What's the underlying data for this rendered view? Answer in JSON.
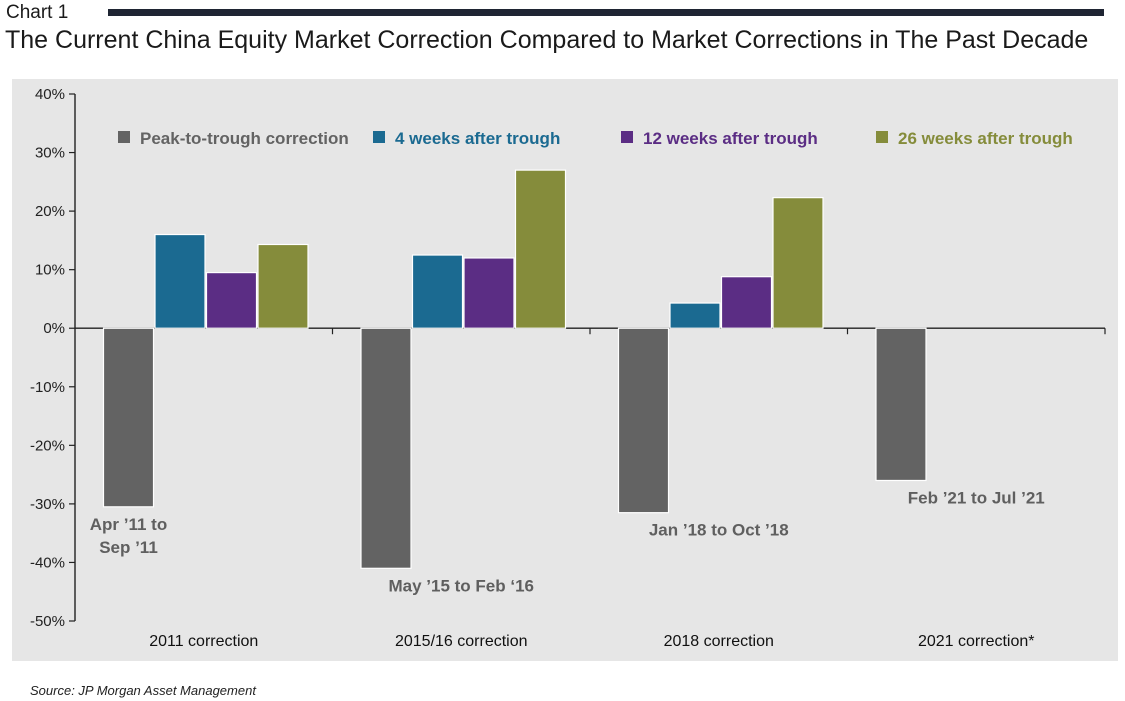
{
  "header": {
    "label": "Chart 1",
    "title": "The Current China Equity Market Correction Compared to Market Corrections in The Past Decade"
  },
  "footer": {
    "source": "Source: JP Morgan Asset Management"
  },
  "chart_data": {
    "type": "bar",
    "categories": [
      "2011 correction",
      "2015/16 correction",
      "2018 correction",
      "2021 correction*"
    ],
    "series": [
      {
        "name": "Peak-to-trough correction",
        "color": "#636363",
        "values": [
          -30.5,
          -41.0,
          -31.5,
          -26.0
        ]
      },
      {
        "name": "4 weeks after trough",
        "color": "#1b6a91",
        "values": [
          16.0,
          12.5,
          4.3,
          null
        ]
      },
      {
        "name": "12 weeks after trough",
        "color": "#5b2d84",
        "values": [
          9.5,
          12.0,
          8.8,
          null
        ]
      },
      {
        "name": "26 weeks after trough",
        "color": "#858c3b",
        "values": [
          14.3,
          27.0,
          22.3,
          null
        ]
      }
    ],
    "annotations": [
      {
        "category": "2011 correction",
        "lines": [
          "Apr ’11 to",
          "Sep ’11"
        ]
      },
      {
        "category": "2015/16 correction",
        "lines": [
          "May ’15 to Feb ‘16"
        ]
      },
      {
        "category": "2018 correction",
        "lines": [
          "Jan ’18 to Oct ’18"
        ]
      },
      {
        "category": "2021 correction*",
        "lines": [
          "Feb ’21 to Jul ’21"
        ]
      }
    ],
    "yticks": [
      "40%",
      "30%",
      "20%",
      "10%",
      "0%",
      "-10%",
      "-20%",
      "-30%",
      "-40%",
      "-50%"
    ],
    "ylim": [
      -50,
      40
    ],
    "xlabel": "",
    "ylabel": "",
    "grid": false,
    "legend_position": "top",
    "legend_text_colors": [
      "#636363",
      "#1b6a91",
      "#5b2d84",
      "#858c3b"
    ]
  }
}
